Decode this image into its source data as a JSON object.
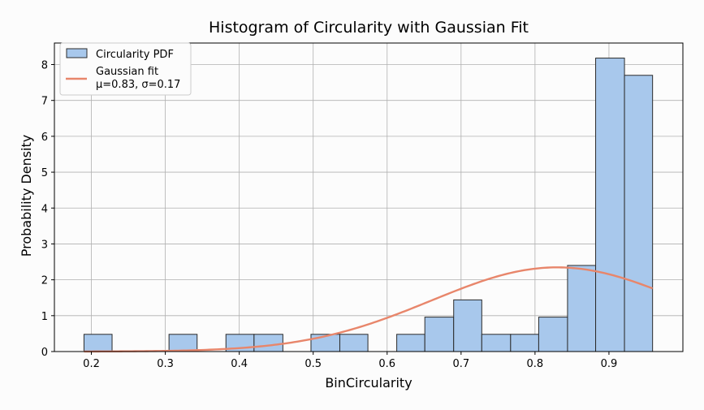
{
  "chart_data": {
    "type": "bar",
    "title": "Histogram of Circularity with Gaussian Fit",
    "xlabel": "BinCircularity",
    "ylabel": "Probability Density",
    "xlim": [
      0.15,
      1.0
    ],
    "ylim": [
      0,
      8.6
    ],
    "xticks": [
      "0.2",
      "0.3",
      "0.4",
      "0.5",
      "0.6",
      "0.7",
      "0.8",
      "0.9"
    ],
    "yticks": [
      "0",
      "1",
      "2",
      "3",
      "4",
      "5",
      "6",
      "7",
      "8"
    ],
    "grid": true,
    "legend_position": "top-left",
    "bins": [
      {
        "left": 0.19,
        "right": 0.228,
        "value": 0.48
      },
      {
        "left": 0.228,
        "right": 0.266,
        "value": 0
      },
      {
        "left": 0.266,
        "right": 0.305,
        "value": 0
      },
      {
        "left": 0.305,
        "right": 0.343,
        "value": 0.48
      },
      {
        "left": 0.343,
        "right": 0.382,
        "value": 0
      },
      {
        "left": 0.382,
        "right": 0.42,
        "value": 0.48
      },
      {
        "left": 0.42,
        "right": 0.459,
        "value": 0.48
      },
      {
        "left": 0.459,
        "right": 0.497,
        "value": 0
      },
      {
        "left": 0.497,
        "right": 0.536,
        "value": 0.48
      },
      {
        "left": 0.536,
        "right": 0.574,
        "value": 0.48
      },
      {
        "left": 0.574,
        "right": 0.613,
        "value": 0
      },
      {
        "left": 0.613,
        "right": 0.651,
        "value": 0.48
      },
      {
        "left": 0.651,
        "right": 0.69,
        "value": 0.96
      },
      {
        "left": 0.69,
        "right": 0.728,
        "value": 1.44
      },
      {
        "left": 0.728,
        "right": 0.767,
        "value": 0.48
      },
      {
        "left": 0.767,
        "right": 0.805,
        "value": 0.48
      },
      {
        "left": 0.805,
        "right": 0.844,
        "value": 0.96
      },
      {
        "left": 0.844,
        "right": 0.882,
        "value": 2.4
      },
      {
        "left": 0.882,
        "right": 0.921,
        "value": 8.18
      },
      {
        "left": 0.921,
        "right": 0.959,
        "value": 7.7
      }
    ],
    "series": [
      {
        "name": "Circularity PDF",
        "kind": "histogram",
        "color": "#a8c8ec",
        "edge_color": "#2b2b2b"
      },
      {
        "name": "Gaussian fit\nμ=0.83, σ=0.17",
        "kind": "line",
        "color": "#e8866b",
        "mu": 0.83,
        "sigma": 0.17,
        "x_range": [
          0.19,
          0.959
        ]
      }
    ],
    "legend": [
      "Circularity PDF",
      "Gaussian fit",
      "μ=0.83, σ=0.17"
    ]
  }
}
